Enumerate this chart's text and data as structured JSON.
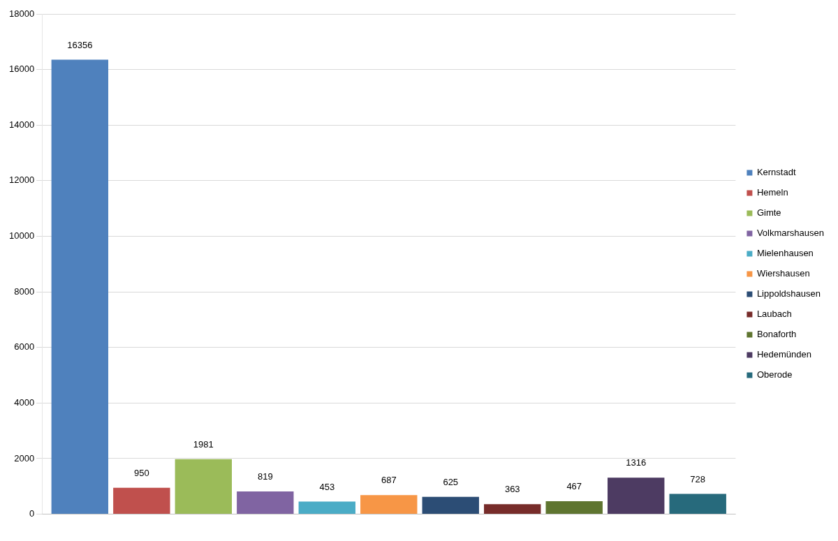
{
  "chart_data": {
    "type": "bar",
    "categories": [
      null
    ],
    "series": [
      {
        "name": "Kernstadt",
        "color": "#4f81bd",
        "values": [
          16356
        ]
      },
      {
        "name": "Hemeln",
        "color": "#c0504d",
        "values": [
          950
        ]
      },
      {
        "name": "Gimte",
        "color": "#9bbb59",
        "values": [
          1981
        ]
      },
      {
        "name": "Volkmarshausen",
        "color": "#8064a2",
        "values": [
          819
        ]
      },
      {
        "name": "Mielenhausen",
        "color": "#4bacc6",
        "values": [
          453
        ]
      },
      {
        "name": "Wiershausen",
        "color": "#f79646",
        "values": [
          687
        ]
      },
      {
        "name": "Lippoldshausen",
        "color": "#2c4d75",
        "values": [
          625
        ]
      },
      {
        "name": "Laubach",
        "color": "#772c2a",
        "values": [
          363
        ]
      },
      {
        "name": "Bonaforth",
        "color": "#5f7530",
        "values": [
          467
        ]
      },
      {
        "name": "Hedemünden",
        "color": "#4d3b62",
        "values": [
          1316
        ]
      },
      {
        "name": "Oberode",
        "color": "#276a7c",
        "values": [
          728
        ]
      }
    ],
    "ylim": [
      0,
      18000
    ],
    "yticks": [
      0,
      2000,
      4000,
      6000,
      8000,
      10000,
      12000,
      14000,
      16000,
      18000
    ],
    "grid": "y",
    "legend": "right",
    "data_labels": true
  }
}
